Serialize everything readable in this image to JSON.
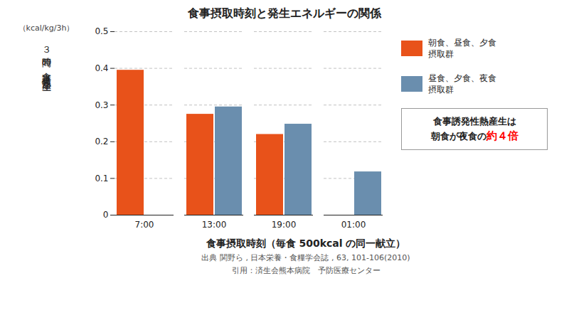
{
  "chart_data": {
    "type": "bar",
    "title": "食事摂取時刻と発生エネルギーの関係",
    "xlabel": "食事摂取時刻（毎食 500kcal の同一献立）",
    "ylabel": "３時間の食事誘発性熱産生",
    "annotations": [
      "（kcal/kg/3h）",
      "出典 関野ら , 日本栄養・食糧学会誌 , 63, 101-106(2010)",
      "引用：済生会熊本病院　予防医療センター",
      "食事誘発性熱産生は",
      "朝食が夜食の",
      {
        "text": "約４倍",
        "color": "red"
      }
    ],
    "categories": [
      "7:00",
      "13:00",
      "19:00",
      "01:00"
    ],
    "series": [
      {
        "name": "朝食、昼食、夕食\n摂取群",
        "color": "#E8521A",
        "values": [
          0.395,
          0.275,
          0.22,
          null
        ]
      },
      {
        "name": "昼食、夕食、夜食\n摂取群",
        "color": "#6A8EAE",
        "values": [
          null,
          0.295,
          0.248,
          0.118
        ]
      }
    ],
    "ylim": [
      0,
      0.5
    ],
    "yticks": [
      0,
      0.1,
      0.2,
      0.3,
      0.4,
      0.5
    ],
    "grid": true,
    "legend": "right"
  }
}
